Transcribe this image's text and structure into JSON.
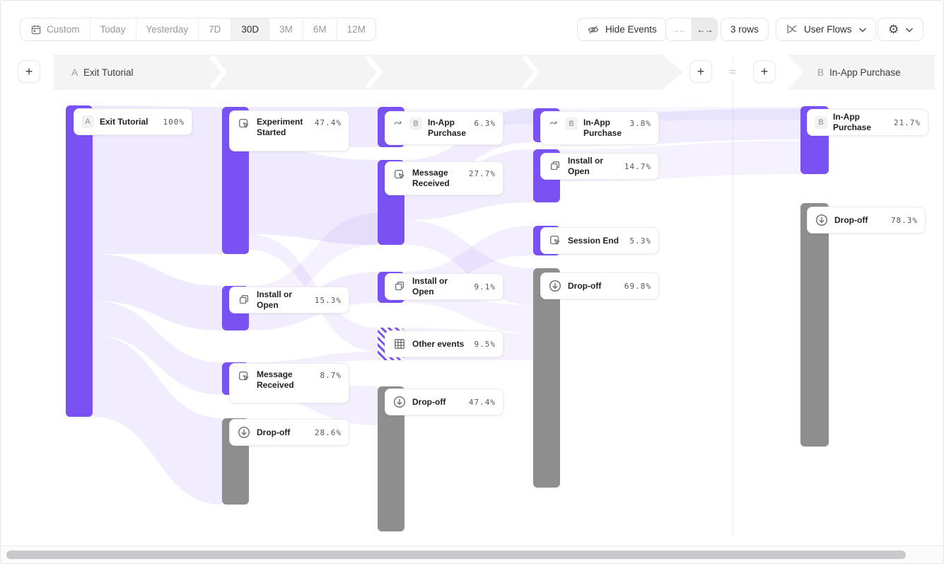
{
  "toolbar": {
    "date_ranges": [
      "Custom",
      "Today",
      "Yesterday",
      "7D",
      "30D",
      "3M",
      "6M",
      "12M"
    ],
    "active_range": "30D",
    "hide_events_label": "Hide Events",
    "collapse_glyph": "→←",
    "expand_glyph": "←→",
    "rows_label": "3 rows",
    "view_label": "User Flows",
    "settings_icon": "gear-icon",
    "gear_glyph": "⚙"
  },
  "header": {
    "add_label": "+",
    "approx": "≈",
    "flow_a": {
      "badge": "A",
      "label": "Exit Tutorial"
    },
    "flow_b": {
      "badge": "B",
      "label": "In-App Purchase"
    }
  },
  "cards": [
    {
      "label": "Exit Tutorial",
      "pct": "100%",
      "badge": "A",
      "icon": ""
    },
    {
      "label": "Experiment Started",
      "pct": "47.4%",
      "icon": "click"
    },
    {
      "label": "Install or Open",
      "pct": "15.3%",
      "icon": "copy"
    },
    {
      "label": "Message Received",
      "pct": "8.7%",
      "icon": "click"
    },
    {
      "label": "Drop-off",
      "pct": "28.6%",
      "icon": "dropoff"
    },
    {
      "label": "In-App Purchase",
      "pct": "6.3%",
      "badge": "B",
      "icon": "jump"
    },
    {
      "label": "Message Received",
      "pct": "27.7%",
      "icon": "click"
    },
    {
      "label": "Install or Open",
      "pct": "9.1%",
      "icon": "copy"
    },
    {
      "label": "Other events",
      "pct": "9.5%",
      "icon": "grid"
    },
    {
      "label": "Drop-off",
      "pct": "47.4%",
      "icon": "dropoff"
    },
    {
      "label": "In-App Purchase",
      "pct": "3.8%",
      "badge": "B",
      "icon": "jump"
    },
    {
      "label": "Install or Open",
      "pct": "14.7%",
      "icon": "copy"
    },
    {
      "label": "Session End",
      "pct": "5.3%",
      "icon": "click"
    },
    {
      "label": "Drop-off",
      "pct": "69.8%",
      "icon": "dropoff"
    },
    {
      "label": "In-App Purchase",
      "pct": "21.7%",
      "badge": "B",
      "icon": ""
    },
    {
      "label": "Drop-off",
      "pct": "78.3%",
      "icon": "dropoff"
    }
  ],
  "colors": {
    "node_purple": "#7a52f4",
    "node_gray": "#8e8e8e",
    "ribbon": "#7a52f4",
    "banner_bg": "#f4f4f5"
  }
}
